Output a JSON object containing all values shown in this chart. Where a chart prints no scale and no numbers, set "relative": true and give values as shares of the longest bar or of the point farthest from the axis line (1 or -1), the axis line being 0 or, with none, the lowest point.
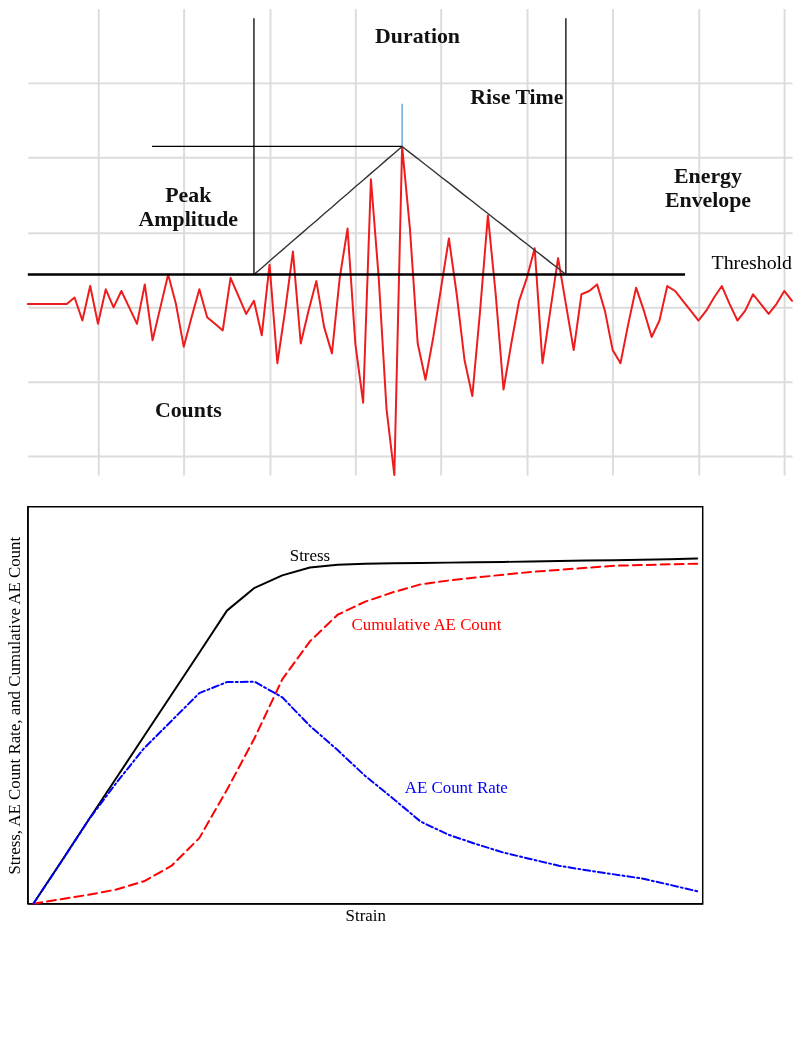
{
  "chart_data": [
    {
      "type": "line",
      "relative": true,
      "grid": true,
      "tick_labels": false,
      "categories": [
        null,
        null,
        null,
        null,
        null,
        null,
        null,
        null,
        null,
        null,
        null,
        null,
        null,
        null,
        null,
        null,
        null,
        null,
        null,
        null,
        null,
        null,
        null,
        null,
        null,
        null,
        null,
        null,
        null,
        null,
        null,
        null,
        null,
        null,
        null,
        null,
        null,
        null,
        null,
        null,
        null,
        null,
        null,
        null,
        null,
        null,
        null,
        null,
        null,
        null,
        null,
        null,
        null,
        null,
        null,
        null,
        null,
        null,
        null,
        null,
        null,
        null,
        null,
        null,
        null,
        null,
        null,
        null,
        null,
        null,
        null,
        null,
        null,
        null,
        null,
        null,
        null,
        null,
        null,
        null,
        null,
        null,
        null,
        null,
        null,
        null,
        null,
        null,
        null,
        null,
        null,
        null,
        null,
        null,
        null,
        null,
        null,
        null,
        null
      ],
      "series": [
        {
          "color": "#ee1c1c",
          "values": [
            0.52,
            0.52,
            0.52,
            0.52,
            0.52,
            0.52,
            0.54,
            0.47,
            0.575,
            0.46,
            0.565,
            0.51,
            0.56,
            0.51,
            0.46,
            0.58,
            0.41,
            0.51,
            0.61,
            0.52,
            0.39,
            0.48,
            0.565,
            0.48,
            0.46,
            0.44,
            0.6,
            0.545,
            0.49,
            0.53,
            0.425,
            0.64,
            0.34,
            0.5,
            0.68,
            0.4,
            0.5,
            0.59,
            0.45,
            0.37,
            0.6,
            0.75,
            0.4,
            0.22,
            0.9,
            0.6,
            0.2,
            0,
            1,
            0.75,
            0.4,
            0.29,
            0.42,
            0.57,
            0.72,
            0.55,
            0.35,
            0.24,
            0.5,
            0.79,
            0.55,
            0.26,
            0.4,
            0.53,
            0.6,
            0.69,
            0.34,
            0.5,
            0.66,
            0.52,
            0.38,
            0.55,
            0.56,
            0.58,
            0.5,
            0.38,
            0.34,
            0.46,
            0.57,
            0.5,
            0.42,
            0.47,
            0.575,
            0.56,
            0.53,
            0.5,
            0.47,
            0.5,
            0.54,
            0.575,
            0.52,
            0.47,
            0.5,
            0.55,
            0.52,
            0.49,
            0.52,
            0.56,
            0.53
          ]
        },
        {
          "color": "#333333",
          "values": [
            null,
            null,
            null,
            null,
            null,
            null,
            null,
            null,
            null,
            null,
            null,
            null,
            null,
            null,
            null,
            null,
            null,
            null,
            null,
            null,
            null,
            null,
            null,
            null,
            null,
            null,
            null,
            null,
            null,
            0.61,
            0.63,
            0.651,
            0.672,
            0.692,
            0.713,
            0.733,
            0.754,
            0.774,
            0.795,
            0.815,
            0.836,
            0.856,
            0.877,
            0.897,
            0.918,
            0.938,
            0.959,
            0.979,
            1,
            0.981,
            0.963,
            0.944,
            0.926,
            0.907,
            0.889,
            0.87,
            0.851,
            0.833,
            0.814,
            0.796,
            0.777,
            0.759,
            0.74,
            0.721,
            0.703,
            0.684,
            0.666,
            0.647,
            0.629,
            0.61,
            null,
            null,
            null,
            null,
            null,
            null,
            null,
            null,
            null,
            null,
            null,
            null,
            null,
            null,
            null,
            null,
            null,
            null,
            null,
            null,
            null,
            null,
            null,
            null,
            null,
            null,
            null,
            null,
            null
          ]
        },
        {
          "color": "#000000",
          "values": [
            null,
            null,
            null,
            null,
            null,
            null,
            null,
            null,
            null,
            null,
            null,
            null,
            null,
            null,
            null,
            null,
            1,
            1,
            1,
            1,
            1,
            1,
            1,
            1,
            1,
            1,
            1,
            1,
            1,
            1,
            1,
            1,
            1,
            1,
            1,
            1,
            1,
            1,
            1,
            1,
            1,
            1,
            1,
            1,
            1,
            1,
            1,
            1,
            1,
            null,
            null,
            null,
            null,
            null,
            null,
            null,
            null,
            null,
            null,
            null,
            null,
            null,
            null,
            null,
            null,
            null,
            null,
            null,
            null,
            null,
            null,
            null,
            null,
            null,
            null,
            null,
            null,
            null,
            null,
            null,
            null,
            null,
            null,
            null,
            null,
            null,
            null,
            null,
            null,
            null,
            null,
            null,
            null,
            null,
            null,
            null,
            null,
            null,
            null
          ]
        }
      ],
      "ref_lines": [
        {
          "axis": "y",
          "value": 0.61,
          "label": "Threshold",
          "color": "#000000"
        }
      ],
      "annotations": [
        "Duration",
        "Rise Time",
        "Peak\nAmplitude",
        "Energy\nEnvelope",
        "Counts"
      ]
    },
    {
      "type": "line",
      "relative": true,
      "tick_labels": false,
      "xlabel": "Strain",
      "ylabel": "Stress, AE Count Rate, and Cumulative AE Count",
      "categories": [
        null,
        null,
        null,
        null,
        null,
        null,
        null,
        null,
        null,
        null,
        null,
        null,
        null,
        null,
        null,
        null,
        null,
        null,
        null,
        null,
        null,
        null,
        null,
        null,
        null
      ],
      "series": [
        {
          "name": "Stress",
          "color": "#000000",
          "line_style": "solid",
          "values": [
            0,
            0.121,
            0.243,
            0.364,
            0.485,
            0.606,
            0.727,
            0.849,
            0.915,
            0.951,
            0.974,
            0.982,
            0.985,
            0.986,
            0.987,
            0.988,
            0.989,
            0.99,
            0.991,
            0.993,
            0.994,
            0.995,
            0.996,
            0.998,
            1.0
          ]
        },
        {
          "name": "Cumulative AE Count",
          "color": "#ff0000",
          "line_style": "dashed",
          "values": [
            0,
            0.013,
            0.026,
            0.041,
            0.065,
            0.11,
            0.19,
            0.33,
            0.48,
            0.65,
            0.76,
            0.837,
            0.875,
            0.902,
            0.925,
            0.936,
            0.945,
            0.953,
            0.961,
            0.967,
            0.973,
            0.979,
            0.981,
            0.983,
            0.985
          ]
        },
        {
          "name": "AE Count Rate",
          "color": "#0000ff",
          "line_style": "dotted",
          "values": [
            0,
            0.12,
            0.243,
            0.35,
            0.45,
            0.53,
            0.61,
            0.642,
            0.643,
            0.598,
            0.515,
            0.445,
            0.37,
            0.305,
            0.238,
            0.2,
            0.173,
            0.148,
            0.129,
            0.11,
            0.097,
            0.085,
            0.073,
            0.055,
            0.036
          ]
        }
      ]
    }
  ]
}
